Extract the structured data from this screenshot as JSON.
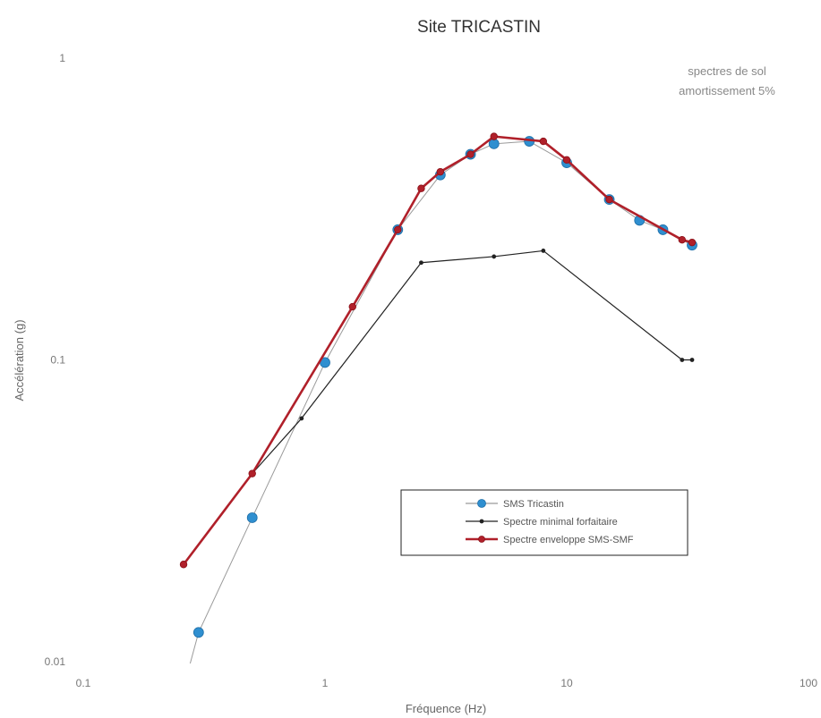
{
  "chart_data": {
    "type": "line",
    "title": "Site TRICASTIN",
    "annotation_lines": [
      "spectres de sol",
      "amortissement 5%"
    ],
    "xlabel": "Fréquence (Hz)",
    "ylabel": "Accélération (g)",
    "xscale": "log",
    "yscale": "log",
    "xlim": [
      0.1,
      100
    ],
    "ylim": [
      0.01,
      1
    ],
    "x_ticks": [
      {
        "value": 0.1,
        "label": "0.1"
      },
      {
        "value": 1,
        "label": "1"
      },
      {
        "value": 10,
        "label": "10"
      },
      {
        "value": 100,
        "label": "100"
      }
    ],
    "y_ticks": [
      {
        "value": 0.01,
        "label": "0.01"
      },
      {
        "value": 0.1,
        "label": "0.1"
      },
      {
        "value": 1,
        "label": "1"
      }
    ],
    "grid": false,
    "legend_position": "bottom-right",
    "series": [
      {
        "name": "SMS Tricastin",
        "color": "#2f8fd0",
        "line_color": "#9a9a9a",
        "marker": "circle-large",
        "points": [
          [
            0.22,
            0.005
          ],
          [
            0.3,
            0.0125
          ],
          [
            0.5,
            0.03
          ],
          [
            1.0,
            0.098
          ],
          [
            2.0,
            0.27
          ],
          [
            3.0,
            0.41
          ],
          [
            4.0,
            0.48
          ],
          [
            5.0,
            0.52
          ],
          [
            7.0,
            0.53
          ],
          [
            10.0,
            0.45
          ],
          [
            15.0,
            0.34
          ],
          [
            20.0,
            0.29
          ],
          [
            25.0,
            0.27
          ],
          [
            33.0,
            0.24
          ]
        ]
      },
      {
        "name": "Spectre minimal forfaitaire",
        "color": "#222222",
        "line_color": "#222222",
        "marker": "dot-small",
        "points": [
          [
            0.5,
            0.042
          ],
          [
            0.8,
            0.064
          ],
          [
            2.5,
            0.21
          ],
          [
            5.0,
            0.22
          ],
          [
            8.0,
            0.23
          ],
          [
            30.0,
            0.1
          ],
          [
            33.0,
            0.1
          ]
        ]
      },
      {
        "name": "Spectre enveloppe SMS-SMF",
        "color": "#b0202a",
        "line_color": "#b0202a",
        "marker": "circle-medium",
        "points": [
          [
            0.26,
            0.021
          ],
          [
            0.5,
            0.042
          ],
          [
            1.3,
            0.15
          ],
          [
            2.0,
            0.27
          ],
          [
            2.5,
            0.37
          ],
          [
            3.0,
            0.42
          ],
          [
            4.0,
            0.48
          ],
          [
            5.0,
            0.55
          ],
          [
            8.0,
            0.53
          ],
          [
            10.0,
            0.46
          ],
          [
            15.0,
            0.34
          ],
          [
            30.0,
            0.25
          ],
          [
            33.0,
            0.245
          ]
        ]
      }
    ]
  }
}
